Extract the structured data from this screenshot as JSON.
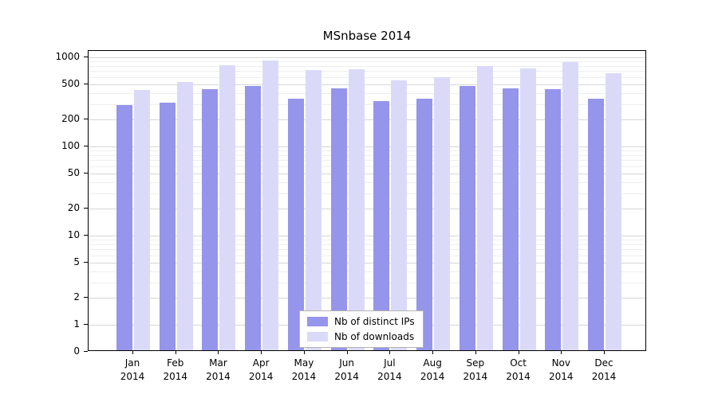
{
  "chart_data": {
    "type": "bar",
    "title": "MSnbase 2014",
    "x_tick_labels": [
      [
        "Jan",
        "2014"
      ],
      [
        "Feb",
        "2014"
      ],
      [
        "Mar",
        "2014"
      ],
      [
        "Apr",
        "2014"
      ],
      [
        "May",
        "2014"
      ],
      [
        "Jun",
        "2014"
      ],
      [
        "Jul",
        "2014"
      ],
      [
        "Aug",
        "2014"
      ],
      [
        "Sep",
        "2014"
      ],
      [
        "Oct",
        "2014"
      ],
      [
        "Nov",
        "2014"
      ],
      [
        "Dec",
        "2014"
      ]
    ],
    "series": [
      {
        "name": "Nb of distinct IPs",
        "color": "#9595ec",
        "values": [
          280,
          300,
          420,
          460,
          330,
          430,
          310,
          330,
          460,
          430,
          420,
          330
        ]
      },
      {
        "name": "Nb of downloads",
        "color": "#dadaf8",
        "values": [
          410,
          510,
          780,
          890,
          690,
          700,
          530,
          570,
          770,
          720,
          840,
          640
        ]
      }
    ],
    "y_scale": "log",
    "y_tick_values": [
      0,
      1,
      2,
      5,
      10,
      20,
      50,
      100,
      200,
      500,
      1000
    ],
    "y_tick_labels": [
      "0",
      "1",
      "2",
      "5",
      "10",
      "20",
      "50",
      "100",
      "200",
      "500",
      "1000"
    ],
    "ylim": [
      0,
      1200
    ],
    "grid": true,
    "legend_position": "bottom-center"
  }
}
